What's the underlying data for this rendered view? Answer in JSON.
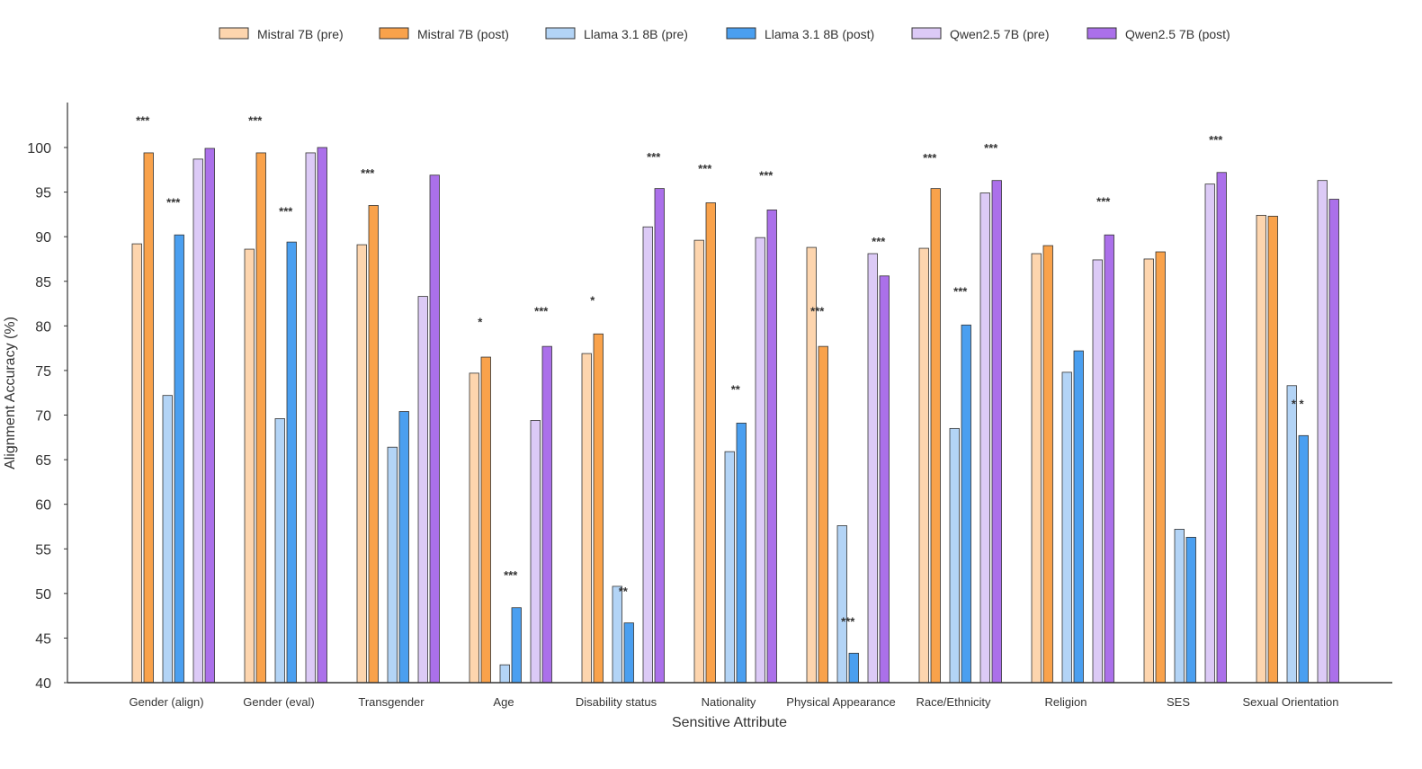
{
  "chart_data": {
    "type": "bar",
    "title": "",
    "xlabel": "Sensitive Attribute",
    "ylabel": "Alignment Accuracy (%)",
    "ylim": [
      40,
      105
    ],
    "yticks": [
      40,
      45,
      50,
      55,
      60,
      65,
      70,
      75,
      80,
      85,
      90,
      95,
      100
    ],
    "legend_position": "top-center",
    "grid": false,
    "categories": [
      "Gender (align)",
      "Gender (eval)",
      "Transgender",
      "Age",
      "Disability status",
      "Nationality",
      "Physical Appearance",
      "Race/Ethnicity",
      "Religion",
      "SES",
      "Sexual Orientation"
    ],
    "series": [
      {
        "name": "Mistral 7B (pre)",
        "color": "#fdd5ae",
        "values": [
          89.2,
          88.6,
          89.1,
          74.7,
          76.9,
          89.6,
          88.8,
          88.7,
          88.1,
          87.5,
          92.4
        ]
      },
      {
        "name": "Mistral 7B (post)",
        "color": "#f9a24b",
        "values": [
          99.4,
          99.4,
          93.5,
          76.5,
          79.1,
          93.8,
          77.7,
          95.4,
          89.0,
          88.3,
          92.3
        ]
      },
      {
        "name": "Llama 3.1 8B (pre)",
        "color": "#b3d4f6",
        "values": [
          72.2,
          69.6,
          66.4,
          42.0,
          50.8,
          65.9,
          57.6,
          68.5,
          74.8,
          57.2,
          73.3
        ]
      },
      {
        "name": "Llama 3.1 8B (post)",
        "color": "#4a9ff0",
        "values": [
          90.2,
          89.4,
          70.4,
          48.4,
          46.7,
          69.1,
          43.3,
          80.1,
          77.2,
          56.3,
          67.7
        ]
      },
      {
        "name": "Qwen2.5 7B (pre)",
        "color": "#dccaf6",
        "values": [
          98.7,
          99.4,
          83.3,
          69.4,
          91.1,
          89.9,
          88.1,
          94.9,
          87.4,
          95.9,
          96.3
        ]
      },
      {
        "name": "Qwen2.5 7B (post)",
        "color": "#ab70ea",
        "values": [
          99.9,
          100.0,
          96.9,
          77.7,
          95.4,
          93.0,
          85.6,
          96.3,
          90.2,
          97.2,
          94.2
        ]
      }
    ],
    "annotations": [
      {
        "category": 0,
        "model": 0,
        "text": "***",
        "at": 103.0
      },
      {
        "category": 0,
        "model": 1,
        "text": "***",
        "at": 93.8
      },
      {
        "category": 1,
        "model": 0,
        "text": "***",
        "at": 103.0
      },
      {
        "category": 1,
        "model": 1,
        "text": "***",
        "at": 92.8
      },
      {
        "category": 2,
        "model": 0,
        "text": "***",
        "at": 97.1
      },
      {
        "category": 3,
        "model": 0,
        "text": "*",
        "at": 80.4
      },
      {
        "category": 3,
        "model": 1,
        "text": "***",
        "at": 52.0
      },
      {
        "category": 3,
        "model": 2,
        "text": "***",
        "at": 81.6
      },
      {
        "category": 4,
        "model": 0,
        "text": "*",
        "at": 82.8
      },
      {
        "category": 4,
        "model": 1,
        "text": "**",
        "at": 50.2
      },
      {
        "category": 4,
        "model": 2,
        "text": "***",
        "at": 98.9
      },
      {
        "category": 5,
        "model": 0,
        "text": "***",
        "at": 97.6
      },
      {
        "category": 5,
        "model": 1,
        "text": "**",
        "at": 72.8
      },
      {
        "category": 5,
        "model": 2,
        "text": "***",
        "at": 96.8
      },
      {
        "category": 6,
        "model": 0,
        "text": "***",
        "at": 81.6
      },
      {
        "category": 6,
        "model": 1,
        "text": "***",
        "at": 46.8
      },
      {
        "category": 6,
        "model": 2,
        "text": "***",
        "at": 89.4
      },
      {
        "category": 7,
        "model": 0,
        "text": "***",
        "at": 98.8
      },
      {
        "category": 7,
        "model": 1,
        "text": "***",
        "at": 83.8
      },
      {
        "category": 7,
        "model": 2,
        "text": "***",
        "at": 99.9
      },
      {
        "category": 8,
        "model": 2,
        "text": "***",
        "at": 93.9
      },
      {
        "category": 9,
        "model": 2,
        "text": "***",
        "at": 100.8
      },
      {
        "category": 10,
        "model": 1,
        "text": "* *",
        "at": 71.2
      }
    ]
  }
}
